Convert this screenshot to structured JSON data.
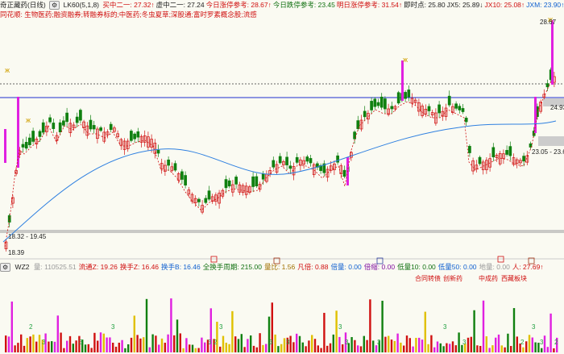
{
  "header": {
    "title": "奇正藏药(日线)",
    "indicator": "LK60(5,1,8)",
    "items": [
      {
        "label": "买中二一: 27.32↑",
        "color": "#d01010"
      },
      {
        "label": "虚中二一: 27.24",
        "color": "#222222"
      },
      {
        "label": "今日涨停参考: 28.67↑",
        "color": "#d01010"
      },
      {
        "label": "今日跌停参考: 23.45",
        "color": "#107010"
      },
      {
        "label": "明日涨停参考: 31.54↑",
        "color": "#d01010"
      },
      {
        "label": "即时点: 25.80",
        "color": "#222222"
      },
      {
        "label": "JX5: 25.89↓",
        "color": "#222222"
      },
      {
        "label": "JX10: 25.08↑",
        "color": "#d01010"
      },
      {
        "label": "JXM: 23.90↑",
        "color": "#1060d0"
      },
      {
        "label": "JX250: -",
        "color": "#d01010"
      }
    ]
  },
  "concepts": "同花顺: 生物医药;融资融券;转融券标的;中医药;冬虫夏草;深股通;富时罗素概念股;流感",
  "price_labels": {
    "high": "28.67",
    "right_mid": "24.93",
    "low_right": "23.05 - 23.6",
    "left_level": "18.32 - 19.45",
    "low": "18.39"
  },
  "indicator_bar": {
    "name": "WZ2",
    "items": [
      {
        "label": "量: 110525.51",
        "color": "#999999"
      },
      {
        "label": "流通Z: 19.26",
        "color": "#d01010"
      },
      {
        "label": "换手Z: 16.46",
        "color": "#d01010"
      },
      {
        "label": "换手B: 16.46",
        "color": "#1060d0"
      },
      {
        "label": "全换手周期: 215.00",
        "color": "#107010"
      },
      {
        "label": "量比: 1.56",
        "color": "#a07000"
      },
      {
        "label": "凡倍: 0.88",
        "color": "#d01010"
      },
      {
        "label": "倍量: 0.00",
        "color": "#1060d0"
      },
      {
        "label": "倍缩: 0.00",
        "color": "#8010a0"
      },
      {
        "label": "低量10: 0.00",
        "color": "#107010"
      },
      {
        "label": "低量50: 0.00",
        "color": "#1060d0"
      },
      {
        "label": "地量: 0.00",
        "color": "#999999"
      },
      {
        "label": "人: 27.69↑",
        "color": "#d01010"
      }
    ],
    "tags": [
      "合同转债",
      "创新药",
      "中成药",
      "西藏板块"
    ]
  },
  "volume_marks": [
    "2",
    "3",
    "3",
    "3",
    "3",
    "2",
    "3",
    "3",
    "3",
    "3",
    "3",
    "3",
    "3",
    "3",
    "2",
    "3",
    "3",
    "2"
  ],
  "colors": {
    "up": "#d01010",
    "down": "#108010",
    "ma_blue": "#2f80e0",
    "magenta": "#e020e0"
  }
}
